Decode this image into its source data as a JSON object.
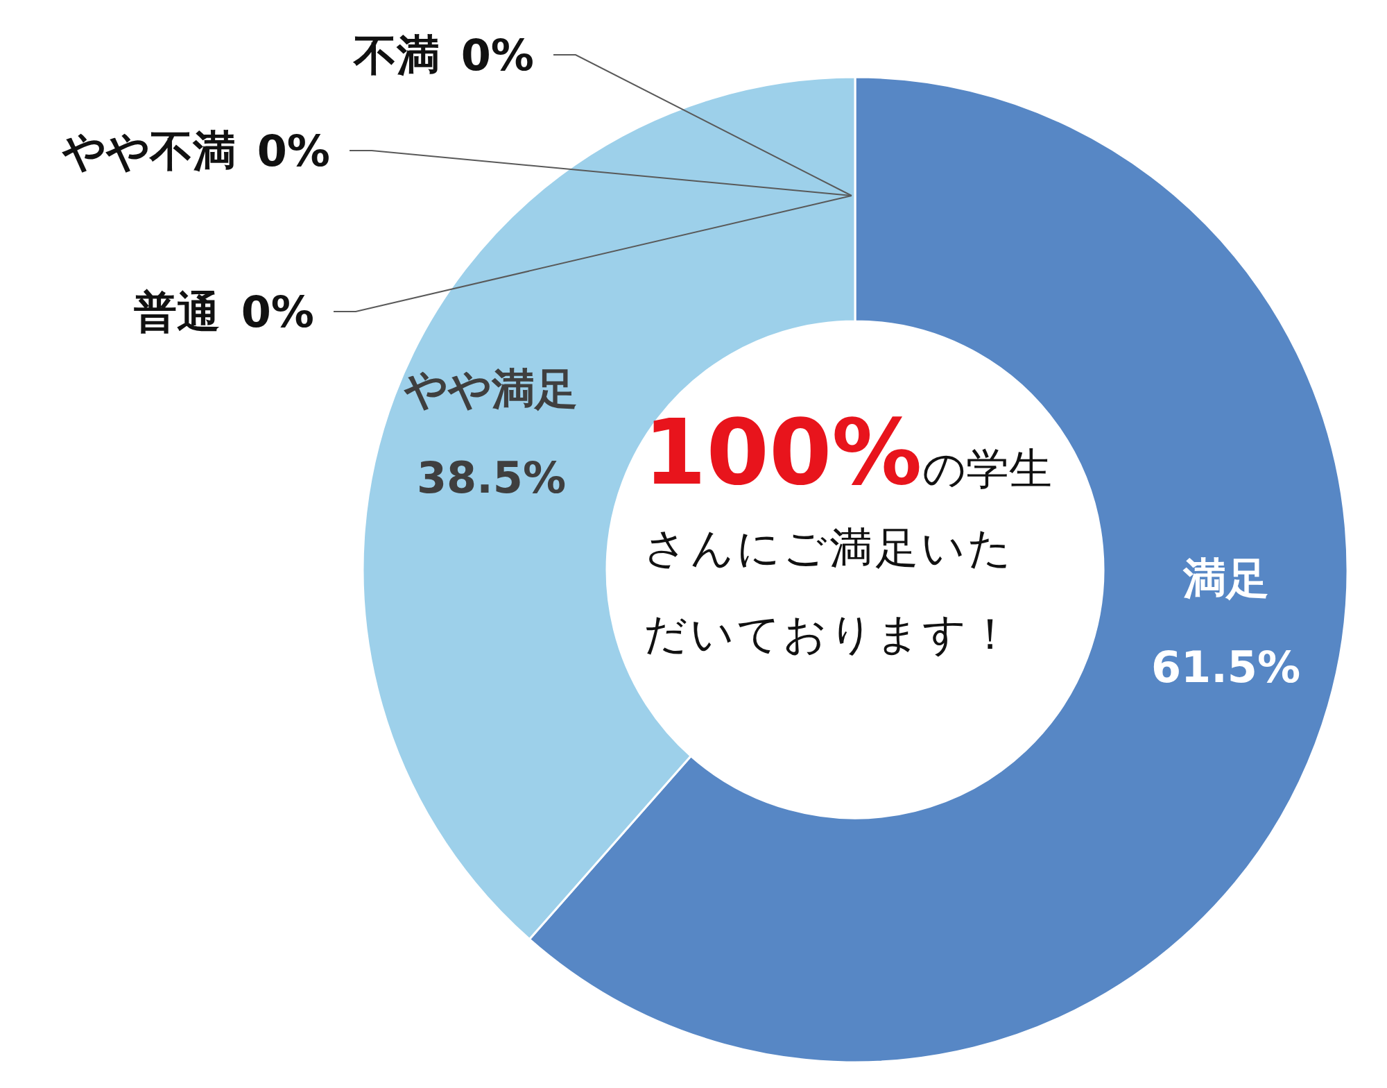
{
  "chart_data": {
    "type": "donut",
    "categories": [
      "満足",
      "やや満足",
      "普通",
      "やや不満",
      "不満"
    ],
    "values": [
      61.5,
      38.5,
      0,
      0,
      0
    ],
    "value_labels": [
      "61.5%",
      "38.5%",
      "0%",
      "0%",
      "0%"
    ],
    "colors": [
      "#5787c5",
      "#9dd0ea",
      "#a5a5a5",
      "#ffc000",
      "#ed7d31"
    ],
    "annotations": [
      "100%",
      "の学生さんにご満足いただいております！"
    ]
  }
}
